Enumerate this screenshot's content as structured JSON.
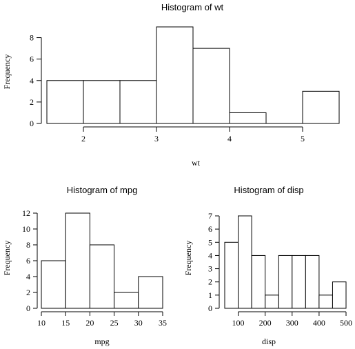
{
  "chart_data": [
    {
      "type": "bar",
      "title": "Histogram of wt",
      "xlabel": "wt",
      "ylabel": "Frequency",
      "bin_edges": [
        1.5,
        2.0,
        2.5,
        3.0,
        3.5,
        4.0,
        4.5,
        5.0,
        5.5
      ],
      "values": [
        4,
        4,
        4,
        9,
        7,
        1,
        0,
        3
      ],
      "xticks": [
        2,
        3,
        4,
        5
      ],
      "yticks": [
        0,
        2,
        4,
        6,
        8
      ],
      "xlim": [
        1.5,
        5.5
      ],
      "ylim": [
        0,
        9
      ]
    },
    {
      "type": "bar",
      "title": "Histogram of mpg",
      "xlabel": "mpg",
      "ylabel": "Frequency",
      "bin_edges": [
        10,
        15,
        20,
        25,
        30,
        35
      ],
      "values": [
        6,
        12,
        8,
        2,
        4
      ],
      "xticks": [
        10,
        15,
        20,
        25,
        30,
        35
      ],
      "yticks": [
        0,
        2,
        4,
        6,
        8,
        10,
        12
      ],
      "xlim": [
        10,
        35
      ],
      "ylim": [
        0,
        12
      ]
    },
    {
      "type": "bar",
      "title": "Histogram of disp",
      "xlabel": "disp",
      "ylabel": "Frequency",
      "bin_edges": [
        50,
        100,
        150,
        200,
        250,
        300,
        350,
        400,
        450,
        500
      ],
      "values": [
        5,
        7,
        4,
        1,
        4,
        4,
        4,
        1,
        2
      ],
      "xticks": [
        100,
        200,
        300,
        400,
        500
      ],
      "yticks": [
        0,
        1,
        2,
        3,
        4,
        5,
        6,
        7
      ],
      "xlim": [
        50,
        500
      ],
      "ylim": [
        0,
        7
      ]
    }
  ]
}
